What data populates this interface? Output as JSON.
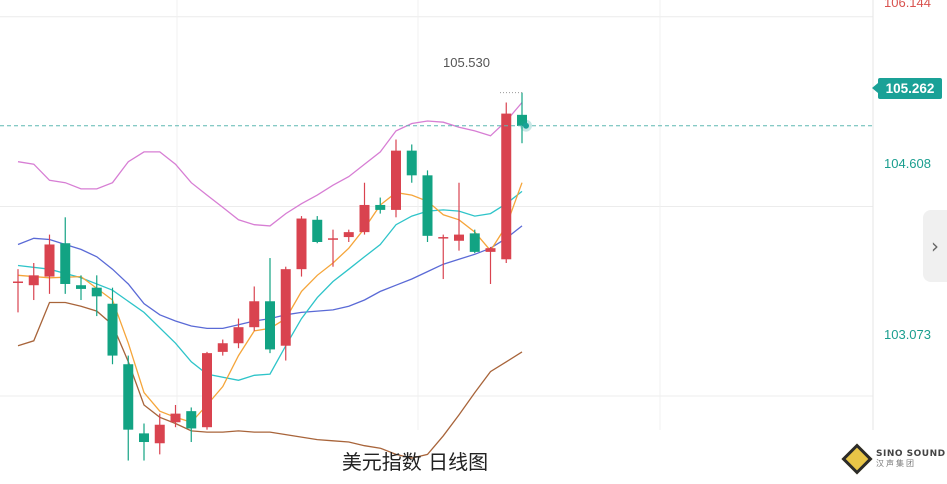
{
  "caption": "美元指数 日线图",
  "price_axis": {
    "labels": [
      "106.144",
      "104.608",
      "103.073"
    ],
    "current_price": "105.262"
  },
  "high_annotation": "105.530",
  "logo": {
    "line1": "SINO SOUND",
    "line2": "汉声集团"
  },
  "colors": {
    "up": "#d9434f",
    "down": "#12a383",
    "ma5": "#f5a53a",
    "ma10": "#2ec4c9",
    "ma20": "#5a6ad6",
    "boll_upper": "#d77ed4",
    "boll_lower": "#a8643a"
  },
  "chart_data": {
    "type": "candlestick",
    "ylim": [
      102.36,
      106.28
    ],
    "y_ticks": [
      106.144,
      104.608,
      103.073
    ],
    "current_price": 105.262,
    "highest": 105.53,
    "grid": true,
    "candles": [
      {
        "o": 104.0,
        "h": 104.1,
        "l": 103.75,
        "c": 104.0
      },
      {
        "o": 103.97,
        "h": 104.15,
        "l": 103.85,
        "c": 104.05
      },
      {
        "o": 104.04,
        "h": 104.38,
        "l": 103.9,
        "c": 104.3
      },
      {
        "o": 104.31,
        "h": 104.52,
        "l": 103.9,
        "c": 103.98
      },
      {
        "o": 103.97,
        "h": 104.05,
        "l": 103.85,
        "c": 103.94
      },
      {
        "o": 103.95,
        "h": 104.05,
        "l": 103.72,
        "c": 103.88
      },
      {
        "o": 103.82,
        "h": 103.95,
        "l": 103.33,
        "c": 103.4
      },
      {
        "o": 103.33,
        "h": 103.4,
        "l": 102.55,
        "c": 102.8
      },
      {
        "o": 102.77,
        "h": 102.85,
        "l": 102.55,
        "c": 102.7
      },
      {
        "o": 102.69,
        "h": 102.93,
        "l": 102.6,
        "c": 102.84
      },
      {
        "o": 102.86,
        "h": 103.0,
        "l": 102.82,
        "c": 102.93
      },
      {
        "o": 102.95,
        "h": 102.98,
        "l": 102.7,
        "c": 102.81
      },
      {
        "o": 102.82,
        "h": 103.43,
        "l": 102.8,
        "c": 103.42
      },
      {
        "o": 103.43,
        "h": 103.53,
        "l": 103.4,
        "c": 103.5
      },
      {
        "o": 103.5,
        "h": 103.7,
        "l": 103.46,
        "c": 103.63
      },
      {
        "o": 103.63,
        "h": 103.96,
        "l": 103.6,
        "c": 103.84
      },
      {
        "o": 103.84,
        "h": 104.19,
        "l": 103.42,
        "c": 103.45
      },
      {
        "o": 103.48,
        "h": 104.12,
        "l": 103.36,
        "c": 104.1
      },
      {
        "o": 104.1,
        "h": 104.53,
        "l": 104.04,
        "c": 104.51
      },
      {
        "o": 104.5,
        "h": 104.53,
        "l": 104.31,
        "c": 104.32
      },
      {
        "o": 104.35,
        "h": 104.42,
        "l": 104.12,
        "c": 104.35
      },
      {
        "o": 104.36,
        "h": 104.42,
        "l": 104.32,
        "c": 104.4
      },
      {
        "o": 104.4,
        "h": 104.8,
        "l": 104.38,
        "c": 104.62
      },
      {
        "o": 104.62,
        "h": 104.68,
        "l": 104.55,
        "c": 104.58
      },
      {
        "o": 104.58,
        "h": 105.15,
        "l": 104.52,
        "c": 105.06
      },
      {
        "o": 105.06,
        "h": 105.11,
        "l": 104.8,
        "c": 104.86
      },
      {
        "o": 104.86,
        "h": 104.9,
        "l": 104.32,
        "c": 104.37
      },
      {
        "o": 104.35,
        "h": 104.38,
        "l": 104.02,
        "c": 104.36
      },
      {
        "o": 104.33,
        "h": 104.8,
        "l": 104.25,
        "c": 104.38
      },
      {
        "o": 104.39,
        "h": 104.42,
        "l": 104.23,
        "c": 104.24
      },
      {
        "o": 104.24,
        "h": 104.28,
        "l": 103.98,
        "c": 104.27
      },
      {
        "o": 104.18,
        "h": 105.45,
        "l": 104.15,
        "c": 105.36
      },
      {
        "o": 105.35,
        "h": 105.53,
        "l": 105.12,
        "c": 105.26
      }
    ],
    "ma5": [
      [
        0,
        104.05
      ],
      [
        2,
        104.03
      ],
      [
        4,
        104.04
      ],
      [
        6,
        103.85
      ],
      [
        7,
        103.5
      ],
      [
        8,
        103.1
      ],
      [
        9,
        102.95
      ],
      [
        10,
        102.9
      ],
      [
        11,
        102.86
      ],
      [
        12,
        103.0
      ],
      [
        13,
        103.15
      ],
      [
        14,
        103.4
      ],
      [
        15,
        103.6
      ],
      [
        16,
        103.62
      ],
      [
        17,
        103.7
      ],
      [
        18,
        103.92
      ],
      [
        19,
        104.05
      ],
      [
        20,
        104.15
      ],
      [
        21,
        104.27
      ],
      [
        22,
        104.43
      ],
      [
        23,
        104.62
      ],
      [
        24,
        104.72
      ],
      [
        25,
        104.7
      ],
      [
        26,
        104.65
      ],
      [
        27,
        104.54
      ],
      [
        28,
        104.5
      ],
      [
        29,
        104.4
      ],
      [
        30,
        104.25
      ],
      [
        31,
        104.45
      ],
      [
        32,
        104.8
      ]
    ],
    "ma10": [
      [
        0,
        104.13
      ],
      [
        2,
        104.1
      ],
      [
        4,
        104.03
      ],
      [
        6,
        103.93
      ],
      [
        8,
        103.75
      ],
      [
        10,
        103.5
      ],
      [
        11,
        103.35
      ],
      [
        12,
        103.25
      ],
      [
        14,
        103.2
      ],
      [
        15,
        103.24
      ],
      [
        16,
        103.25
      ],
      [
        17,
        103.48
      ],
      [
        18,
        103.7
      ],
      [
        19,
        103.87
      ],
      [
        20,
        104.0
      ],
      [
        21,
        104.1
      ],
      [
        22,
        104.2
      ],
      [
        23,
        104.3
      ],
      [
        24,
        104.46
      ],
      [
        25,
        104.53
      ],
      [
        26,
        104.57
      ],
      [
        27,
        104.58
      ],
      [
        28,
        104.57
      ],
      [
        29,
        104.53
      ],
      [
        30,
        104.55
      ],
      [
        31,
        104.63
      ],
      [
        32,
        104.73
      ]
    ],
    "ma20": [
      [
        0,
        104.3
      ],
      [
        1,
        104.35
      ],
      [
        2,
        104.34
      ],
      [
        3,
        104.3
      ],
      [
        4,
        104.26
      ],
      [
        5,
        104.2
      ],
      [
        6,
        104.1
      ],
      [
        7,
        103.98
      ],
      [
        8,
        103.82
      ],
      [
        9,
        103.73
      ],
      [
        10,
        103.68
      ],
      [
        11,
        103.64
      ],
      [
        12,
        103.62
      ],
      [
        13,
        103.62
      ],
      [
        14,
        103.65
      ],
      [
        15,
        103.68
      ],
      [
        16,
        103.7
      ],
      [
        17,
        103.73
      ],
      [
        18,
        103.75
      ],
      [
        19,
        103.76
      ],
      [
        20,
        103.77
      ],
      [
        21,
        103.8
      ],
      [
        22,
        103.85
      ],
      [
        23,
        103.92
      ],
      [
        24,
        103.97
      ],
      [
        25,
        104.02
      ],
      [
        26,
        104.08
      ],
      [
        27,
        104.14
      ],
      [
        28,
        104.18
      ],
      [
        29,
        104.22
      ],
      [
        30,
        104.27
      ],
      [
        31,
        104.35
      ],
      [
        32,
        104.45
      ]
    ],
    "boll_upper": [
      [
        0,
        104.97
      ],
      [
        1,
        104.95
      ],
      [
        2,
        104.82
      ],
      [
        3,
        104.8
      ],
      [
        4,
        104.75
      ],
      [
        5,
        104.75
      ],
      [
        6,
        104.8
      ],
      [
        7,
        104.97
      ],
      [
        8,
        105.05
      ],
      [
        9,
        105.05
      ],
      [
        10,
        104.95
      ],
      [
        11,
        104.8
      ],
      [
        12,
        104.7
      ],
      [
        13,
        104.6
      ],
      [
        14,
        104.5
      ],
      [
        15,
        104.46
      ],
      [
        16,
        104.45
      ],
      [
        17,
        104.55
      ],
      [
        18,
        104.63
      ],
      [
        19,
        104.7
      ],
      [
        20,
        104.78
      ],
      [
        21,
        104.85
      ],
      [
        22,
        104.95
      ],
      [
        23,
        105.05
      ],
      [
        24,
        105.22
      ],
      [
        25,
        105.28
      ],
      [
        26,
        105.3
      ],
      [
        27,
        105.29
      ],
      [
        28,
        105.25
      ],
      [
        29,
        105.22
      ],
      [
        30,
        105.18
      ],
      [
        31,
        105.3
      ],
      [
        32,
        105.45
      ]
    ],
    "boll_lower": [
      [
        0,
        103.48
      ],
      [
        1,
        103.52
      ],
      [
        2,
        103.83
      ],
      [
        3,
        103.83
      ],
      [
        4,
        103.8
      ],
      [
        5,
        103.76
      ],
      [
        6,
        103.65
      ],
      [
        7,
        103.35
      ],
      [
        8,
        103.0
      ],
      [
        9,
        102.9
      ],
      [
        10,
        102.85
      ],
      [
        11,
        102.79
      ],
      [
        12,
        102.78
      ],
      [
        13,
        102.78
      ],
      [
        14,
        102.79
      ],
      [
        15,
        102.78
      ],
      [
        16,
        102.78
      ],
      [
        17,
        102.76
      ],
      [
        18,
        102.74
      ],
      [
        19,
        102.72
      ],
      [
        20,
        102.71
      ],
      [
        21,
        102.7
      ],
      [
        22,
        102.67
      ],
      [
        23,
        102.65
      ],
      [
        24,
        102.6
      ],
      [
        25,
        102.57
      ],
      [
        26,
        102.6
      ],
      [
        27,
        102.75
      ],
      [
        28,
        102.92
      ],
      [
        29,
        103.1
      ],
      [
        30,
        103.27
      ],
      [
        31,
        103.35
      ],
      [
        32,
        103.43
      ]
    ]
  }
}
